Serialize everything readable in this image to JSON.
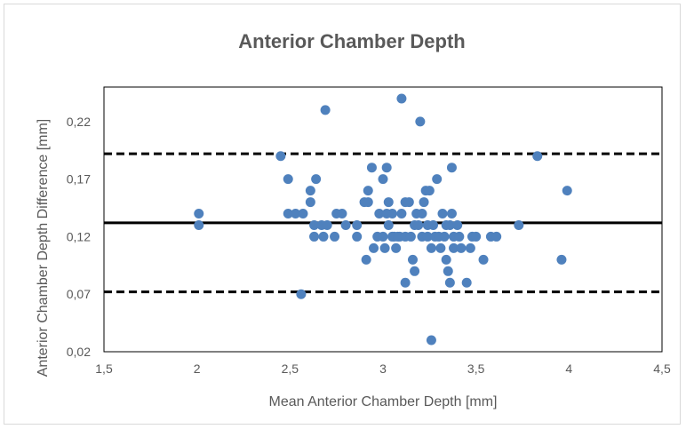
{
  "chart_data": {
    "type": "scatter",
    "title": "Anterior Chamber Depth",
    "xlabel": "Mean Anterior Chamber Depth [mm]",
    "ylabel": "Anterior Chamber Depth Difference [mm]",
    "xlim": [
      1.5,
      4.5
    ],
    "ylim": [
      0.02,
      0.25
    ],
    "xticks": [
      "1,5",
      "2",
      "2,5",
      "3",
      "3,5",
      "4",
      "4,5"
    ],
    "xtick_values": [
      1.5,
      2,
      2.5,
      3,
      3.5,
      4,
      4.5
    ],
    "yticks": [
      "0,02",
      "0,07",
      "0,12",
      "0,17",
      "0,22"
    ],
    "ytick_values": [
      0.02,
      0.07,
      0.12,
      0.17,
      0.22
    ],
    "grid": false,
    "legend": "none",
    "colors": {
      "points": "#4f81bd",
      "lines": "#000000",
      "text": "#595959",
      "frame": "#d9d9d9"
    },
    "reference_lines": [
      {
        "kind": "mean",
        "y": 0.132,
        "style": "solid"
      },
      {
        "kind": "upper_limit",
        "y": 0.192,
        "style": "dashed"
      },
      {
        "kind": "lower_limit",
        "y": 0.072,
        "style": "dashed"
      }
    ],
    "points": [
      [
        2.01,
        0.14
      ],
      [
        2.01,
        0.13
      ],
      [
        2.45,
        0.19
      ],
      [
        2.49,
        0.17
      ],
      [
        2.49,
        0.14
      ],
      [
        2.53,
        0.14
      ],
      [
        2.57,
        0.14
      ],
      [
        2.56,
        0.07
      ],
      [
        2.61,
        0.16
      ],
      [
        2.61,
        0.15
      ],
      [
        2.64,
        0.17
      ],
      [
        2.63,
        0.13
      ],
      [
        2.63,
        0.12
      ],
      [
        2.67,
        0.13
      ],
      [
        2.68,
        0.12
      ],
      [
        2.7,
        0.13
      ],
      [
        2.69,
        0.23
      ],
      [
        2.75,
        0.14
      ],
      [
        2.74,
        0.12
      ],
      [
        2.78,
        0.14
      ],
      [
        2.8,
        0.13
      ],
      [
        2.86,
        0.13
      ],
      [
        2.86,
        0.12
      ],
      [
        2.9,
        0.15
      ],
      [
        2.92,
        0.15
      ],
      [
        2.92,
        0.16
      ],
      [
        2.91,
        0.1
      ],
      [
        2.94,
        0.18
      ],
      [
        2.95,
        0.11
      ],
      [
        2.97,
        0.12
      ],
      [
        2.98,
        0.14
      ],
      [
        3.0,
        0.17
      ],
      [
        3.0,
        0.12
      ],
      [
        3.01,
        0.11
      ],
      [
        3.02,
        0.18
      ],
      [
        3.02,
        0.14
      ],
      [
        3.03,
        0.15
      ],
      [
        3.03,
        0.13
      ],
      [
        3.05,
        0.12
      ],
      [
        3.05,
        0.14
      ],
      [
        3.06,
        0.12
      ],
      [
        3.07,
        0.11
      ],
      [
        3.08,
        0.12
      ],
      [
        3.09,
        0.12
      ],
      [
        3.1,
        0.24
      ],
      [
        3.1,
        0.14
      ],
      [
        3.12,
        0.15
      ],
      [
        3.12,
        0.12
      ],
      [
        3.12,
        0.08
      ],
      [
        3.14,
        0.15
      ],
      [
        3.15,
        0.12
      ],
      [
        3.16,
        0.1
      ],
      [
        3.17,
        0.13
      ],
      [
        3.17,
        0.09
      ],
      [
        3.18,
        0.14
      ],
      [
        3.19,
        0.13
      ],
      [
        3.2,
        0.22
      ],
      [
        3.21,
        0.14
      ],
      [
        3.21,
        0.12
      ],
      [
        3.22,
        0.15
      ],
      [
        3.23,
        0.16
      ],
      [
        3.24,
        0.13
      ],
      [
        3.24,
        0.12
      ],
      [
        3.25,
        0.16
      ],
      [
        3.26,
        0.11
      ],
      [
        3.26,
        0.03
      ],
      [
        3.27,
        0.13
      ],
      [
        3.28,
        0.12
      ],
      [
        3.29,
        0.17
      ],
      [
        3.3,
        0.12
      ],
      [
        3.31,
        0.11
      ],
      [
        3.32,
        0.14
      ],
      [
        3.33,
        0.12
      ],
      [
        3.34,
        0.13
      ],
      [
        3.34,
        0.1
      ],
      [
        3.35,
        0.09
      ],
      [
        3.36,
        0.08
      ],
      [
        3.36,
        0.13
      ],
      [
        3.37,
        0.18
      ],
      [
        3.37,
        0.14
      ],
      [
        3.38,
        0.12
      ],
      [
        3.38,
        0.11
      ],
      [
        3.4,
        0.13
      ],
      [
        3.41,
        0.12
      ],
      [
        3.42,
        0.11
      ],
      [
        3.45,
        0.08
      ],
      [
        3.47,
        0.11
      ],
      [
        3.48,
        0.12
      ],
      [
        3.5,
        0.12
      ],
      [
        3.54,
        0.1
      ],
      [
        3.58,
        0.12
      ],
      [
        3.61,
        0.12
      ],
      [
        3.73,
        0.13
      ],
      [
        3.83,
        0.19
      ],
      [
        3.96,
        0.1
      ],
      [
        3.99,
        0.16
      ]
    ]
  }
}
